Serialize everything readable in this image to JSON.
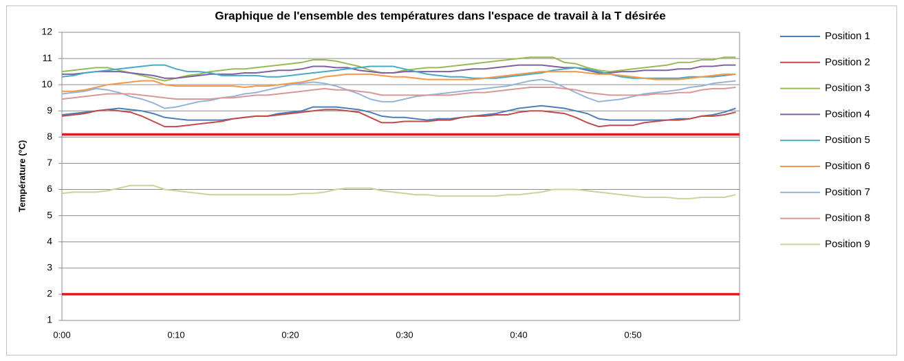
{
  "chart_data": {
    "type": "line",
    "title": "Graphique de l'ensemble des températures dans l'espace de travail à la T désirée",
    "y_label": "Température (°C)",
    "categories": [
      "0:00",
      null,
      null,
      null,
      null,
      null,
      null,
      null,
      null,
      null,
      "0:10",
      null,
      null,
      null,
      null,
      null,
      null,
      null,
      null,
      null,
      "0:20",
      null,
      null,
      null,
      null,
      null,
      null,
      null,
      null,
      null,
      "0:30",
      null,
      null,
      null,
      null,
      null,
      null,
      null,
      null,
      null,
      "0:40",
      null,
      null,
      null,
      null,
      null,
      null,
      null,
      null,
      null,
      "0:50",
      null,
      null,
      null,
      null,
      null,
      null,
      null,
      null,
      null
    ],
    "ylim": [
      1,
      12
    ],
    "yticks": [
      1,
      2,
      3,
      4,
      5,
      6,
      7,
      8,
      9,
      10,
      11,
      12
    ],
    "grid": true,
    "legend": "right",
    "series": [
      {
        "name": "Position 1",
        "color": "#4a7ebb",
        "values": [
          8.85,
          8.9,
          8.95,
          9.0,
          9.05,
          9.1,
          9.05,
          9.0,
          8.9,
          8.75,
          8.7,
          8.65,
          8.65,
          8.65,
          8.65,
          8.7,
          8.75,
          8.8,
          8.8,
          8.9,
          8.95,
          9.0,
          9.15,
          9.15,
          9.15,
          9.1,
          9.05,
          8.95,
          8.8,
          8.75,
          8.75,
          8.7,
          8.65,
          8.7,
          8.7,
          8.75,
          8.8,
          8.85,
          8.9,
          9.0,
          9.1,
          9.15,
          9.2,
          9.15,
          9.1,
          9.0,
          8.9,
          8.7,
          8.65,
          8.65,
          8.65,
          8.65,
          8.65,
          8.65,
          8.7,
          8.7,
          8.8,
          8.85,
          8.95,
          9.1
        ]
      },
      {
        "name": "Position 2",
        "color": "#be4b48",
        "values": [
          8.8,
          8.85,
          8.9,
          9.0,
          9.05,
          9.0,
          8.95,
          8.8,
          8.6,
          8.4,
          8.4,
          8.45,
          8.5,
          8.55,
          8.6,
          8.7,
          8.75,
          8.8,
          8.8,
          8.85,
          8.9,
          8.95,
          9.0,
          9.05,
          9.05,
          9.0,
          8.95,
          8.75,
          8.55,
          8.55,
          8.6,
          8.6,
          8.6,
          8.65,
          8.65,
          8.75,
          8.8,
          8.8,
          8.85,
          8.85,
          8.95,
          9.0,
          9.0,
          8.95,
          8.9,
          8.75,
          8.55,
          8.4,
          8.45,
          8.45,
          8.45,
          8.55,
          8.6,
          8.65,
          8.65,
          8.7,
          8.8,
          8.8,
          8.85,
          8.95
        ]
      },
      {
        "name": "Position 3",
        "color": "#98b954",
        "values": [
          10.5,
          10.55,
          10.6,
          10.65,
          10.65,
          10.55,
          10.45,
          10.35,
          10.25,
          10.15,
          10.25,
          10.35,
          10.4,
          10.5,
          10.55,
          10.6,
          10.6,
          10.65,
          10.7,
          10.75,
          10.8,
          10.85,
          10.95,
          10.95,
          10.9,
          10.8,
          10.7,
          10.55,
          10.45,
          10.45,
          10.55,
          10.6,
          10.65,
          10.65,
          10.7,
          10.75,
          10.8,
          10.85,
          10.9,
          10.95,
          11.0,
          11.05,
          11.05,
          11.05,
          10.85,
          10.8,
          10.65,
          10.55,
          10.5,
          10.55,
          10.6,
          10.65,
          10.7,
          10.75,
          10.85,
          10.85,
          10.95,
          10.95,
          11.05,
          11.05
        ]
      },
      {
        "name": "Position 4",
        "color": "#7d60a0",
        "values": [
          10.4,
          10.4,
          10.45,
          10.5,
          10.5,
          10.5,
          10.45,
          10.4,
          10.35,
          10.25,
          10.25,
          10.3,
          10.35,
          10.4,
          10.4,
          10.4,
          10.45,
          10.45,
          10.5,
          10.55,
          10.55,
          10.6,
          10.7,
          10.7,
          10.65,
          10.65,
          10.55,
          10.5,
          10.45,
          10.45,
          10.5,
          10.5,
          10.5,
          10.5,
          10.5,
          10.55,
          10.6,
          10.6,
          10.65,
          10.7,
          10.75,
          10.75,
          10.75,
          10.7,
          10.65,
          10.65,
          10.55,
          10.45,
          10.45,
          10.5,
          10.5,
          10.55,
          10.55,
          10.55,
          10.6,
          10.6,
          10.7,
          10.7,
          10.75,
          10.75
        ]
      },
      {
        "name": "Position 5",
        "color": "#46aac5",
        "values": [
          10.3,
          10.35,
          10.45,
          10.5,
          10.55,
          10.6,
          10.65,
          10.7,
          10.75,
          10.75,
          10.6,
          10.5,
          10.5,
          10.45,
          10.35,
          10.35,
          10.35,
          10.35,
          10.3,
          10.3,
          10.35,
          10.4,
          10.45,
          10.5,
          10.55,
          10.6,
          10.65,
          10.7,
          10.7,
          10.7,
          10.6,
          10.5,
          10.4,
          10.35,
          10.3,
          10.3,
          10.25,
          10.25,
          10.25,
          10.3,
          10.35,
          10.4,
          10.45,
          10.55,
          10.6,
          10.65,
          10.6,
          10.5,
          10.4,
          10.3,
          10.25,
          10.25,
          10.25,
          10.25,
          10.25,
          10.3,
          10.3,
          10.3,
          10.35,
          10.4
        ]
      },
      {
        "name": "Position 6",
        "color": "#f79646",
        "values": [
          9.75,
          9.75,
          9.8,
          9.9,
          10.0,
          10.05,
          10.1,
          10.15,
          10.15,
          10.0,
          9.95,
          9.95,
          9.95,
          9.95,
          9.95,
          9.95,
          9.9,
          9.95,
          9.95,
          10.0,
          10.05,
          10.1,
          10.2,
          10.3,
          10.35,
          10.4,
          10.4,
          10.4,
          10.35,
          10.3,
          10.3,
          10.25,
          10.2,
          10.2,
          10.2,
          10.2,
          10.2,
          10.25,
          10.3,
          10.35,
          10.4,
          10.45,
          10.5,
          10.5,
          10.5,
          10.5,
          10.45,
          10.4,
          10.4,
          10.35,
          10.3,
          10.25,
          10.2,
          10.2,
          10.2,
          10.25,
          10.3,
          10.35,
          10.4,
          10.4
        ]
      },
      {
        "name": "Position 7",
        "color": "#95b3d7",
        "values": [
          9.65,
          9.7,
          9.75,
          9.85,
          9.8,
          9.7,
          9.55,
          9.45,
          9.3,
          9.1,
          9.15,
          9.25,
          9.35,
          9.4,
          9.5,
          9.55,
          9.65,
          9.7,
          9.8,
          9.9,
          10.0,
          10.05,
          10.1,
          10.05,
          9.95,
          9.8,
          9.65,
          9.45,
          9.35,
          9.35,
          9.45,
          9.55,
          9.6,
          9.65,
          9.7,
          9.75,
          9.8,
          9.85,
          9.9,
          9.95,
          10.05,
          10.15,
          10.2,
          10.1,
          9.9,
          9.7,
          9.5,
          9.35,
          9.4,
          9.45,
          9.55,
          9.65,
          9.7,
          9.75,
          9.8,
          9.9,
          9.95,
          10.05,
          10.1,
          10.15
        ]
      },
      {
        "name": "Position 8",
        "color": "#d99694",
        "values": [
          9.45,
          9.5,
          9.55,
          9.6,
          9.65,
          9.65,
          9.65,
          9.6,
          9.55,
          9.5,
          9.45,
          9.45,
          9.45,
          9.45,
          9.5,
          9.5,
          9.55,
          9.6,
          9.6,
          9.65,
          9.7,
          9.75,
          9.8,
          9.85,
          9.8,
          9.8,
          9.75,
          9.7,
          9.6,
          9.6,
          9.6,
          9.6,
          9.6,
          9.6,
          9.6,
          9.65,
          9.7,
          9.7,
          9.75,
          9.8,
          9.85,
          9.9,
          9.9,
          9.9,
          9.85,
          9.8,
          9.7,
          9.65,
          9.6,
          9.6,
          9.6,
          9.6,
          9.65,
          9.65,
          9.7,
          9.7,
          9.8,
          9.85,
          9.85,
          9.9
        ]
      },
      {
        "name": "Position 9",
        "color": "#c3d69b",
        "values": [
          5.85,
          5.9,
          5.9,
          5.9,
          5.95,
          6.05,
          6.15,
          6.15,
          6.15,
          6.0,
          5.95,
          5.9,
          5.85,
          5.8,
          5.8,
          5.8,
          5.8,
          5.8,
          5.8,
          5.8,
          5.8,
          5.85,
          5.85,
          5.9,
          6.0,
          6.05,
          6.05,
          6.05,
          5.95,
          5.9,
          5.85,
          5.8,
          5.8,
          5.75,
          5.75,
          5.75,
          5.75,
          5.75,
          5.75,
          5.8,
          5.8,
          5.85,
          5.9,
          6.0,
          6.0,
          6.0,
          5.95,
          5.9,
          5.85,
          5.8,
          5.75,
          5.7,
          5.7,
          5.7,
          5.65,
          5.65,
          5.7,
          5.7,
          5.7,
          5.8
        ]
      }
    ],
    "reference_lines": [
      {
        "value": 8.1,
        "color": "#e31a1c"
      },
      {
        "value": 2,
        "color": "#e31a1c"
      }
    ]
  }
}
